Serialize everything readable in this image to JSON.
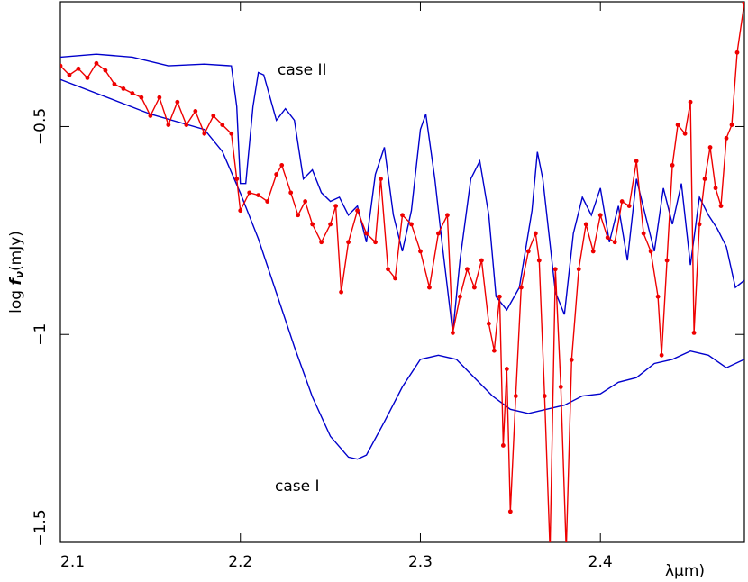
{
  "chart_data": {
    "type": "line",
    "x_label": "λμm)",
    "y_label": {
      "prefix": "log ",
      "symbol": "f",
      "sub": "ν",
      "unit": "(mJy)"
    },
    "xlim": [
      2.1,
      2.48
    ],
    "ylim": [
      -1.5,
      -0.2
    ],
    "xticks": [
      2.1,
      2.2,
      2.3,
      2.4
    ],
    "yticks": [
      {
        "value": -1.5,
        "label": "−1.5"
      },
      {
        "value": -1,
        "label": "−1"
      },
      {
        "value": -0.5,
        "label": "−0.5"
      }
    ],
    "series": [
      {
        "name": "case I",
        "color": "#0000cc",
        "markers": false,
        "x": [
          2.1,
          2.15,
          2.18,
          2.19,
          2.2,
          2.21,
          2.22,
          2.23,
          2.24,
          2.25,
          2.26,
          2.265,
          2.27,
          2.28,
          2.29,
          2.3,
          2.31,
          2.32,
          2.33,
          2.34,
          2.35,
          2.36,
          2.37,
          2.38,
          2.39,
          2.4,
          2.41,
          2.42,
          2.43,
          2.44,
          2.45,
          2.46,
          2.47,
          2.48
        ],
        "values": [
          -0.387,
          -0.47,
          -0.507,
          -0.56,
          -0.66,
          -0.77,
          -0.9,
          -1.03,
          -1.15,
          -1.245,
          -1.295,
          -1.3,
          -1.29,
          -1.21,
          -1.126,
          -1.06,
          -1.05,
          -1.06,
          -1.104,
          -1.148,
          -1.18,
          -1.19,
          -1.18,
          -1.17,
          -1.148,
          -1.143,
          -1.115,
          -1.104,
          -1.07,
          -1.06,
          -1.04,
          -1.05,
          -1.08,
          -1.06
        ]
      },
      {
        "name": "case II",
        "color": "#0000cc",
        "markers": false,
        "x": [
          2.1,
          2.12,
          2.14,
          2.16,
          2.18,
          2.195,
          2.198,
          2.2,
          2.203,
          2.207,
          2.21,
          2.213,
          2.22,
          2.225,
          2.23,
          2.235,
          2.24,
          2.245,
          2.25,
          2.255,
          2.26,
          2.265,
          2.27,
          2.275,
          2.28,
          2.285,
          2.29,
          2.295,
          2.3,
          2.303,
          2.308,
          2.312,
          2.318,
          2.322,
          2.328,
          2.333,
          2.338,
          2.342,
          2.348,
          2.355,
          2.362,
          2.365,
          2.368,
          2.375,
          2.38,
          2.385,
          2.39,
          2.395,
          2.4,
          2.405,
          2.41,
          2.415,
          2.42,
          2.425,
          2.43,
          2.435,
          2.44,
          2.445,
          2.45,
          2.455,
          2.46,
          2.465,
          2.47,
          2.475,
          2.48
        ],
        "values": [
          -0.333,
          -0.326,
          -0.333,
          -0.354,
          -0.35,
          -0.354,
          -0.452,
          -0.637,
          -0.637,
          -0.452,
          -0.37,
          -0.376,
          -0.485,
          -0.457,
          -0.485,
          -0.626,
          -0.604,
          -0.659,
          -0.68,
          -0.67,
          -0.713,
          -0.691,
          -0.778,
          -0.615,
          -0.55,
          -0.713,
          -0.8,
          -0.702,
          -0.507,
          -0.47,
          -0.626,
          -0.778,
          -0.996,
          -0.822,
          -0.626,
          -0.583,
          -0.713,
          -0.909,
          -0.941,
          -0.887,
          -0.702,
          -0.561,
          -0.626,
          -0.898,
          -0.952,
          -0.757,
          -0.67,
          -0.713,
          -0.648,
          -0.778,
          -0.691,
          -0.822,
          -0.626,
          -0.713,
          -0.8,
          -0.648,
          -0.735,
          -0.637,
          -0.833,
          -0.67,
          -0.713,
          -0.746,
          -0.789,
          -0.887,
          -0.87
        ]
      },
      {
        "color": "#ee0000",
        "markers": true,
        "x": [
          2.1,
          2.105,
          2.11,
          2.115,
          2.12,
          2.125,
          2.13,
          2.135,
          2.14,
          2.145,
          2.15,
          2.155,
          2.16,
          2.165,
          2.17,
          2.175,
          2.18,
          2.185,
          2.19,
          2.195,
          2.198,
          2.2,
          2.205,
          2.21,
          2.215,
          2.22,
          2.223,
          2.228,
          2.232,
          2.236,
          2.24,
          2.245,
          2.25,
          2.253,
          2.256,
          2.26,
          2.265,
          2.27,
          2.275,
          2.278,
          2.282,
          2.286,
          2.29,
          2.295,
          2.3,
          2.305,
          2.31,
          2.315,
          2.318,
          2.322,
          2.326,
          2.33,
          2.334,
          2.338,
          2.341,
          2.344,
          2.346,
          2.348,
          2.35,
          2.353,
          2.356,
          2.36,
          2.364,
          2.366,
          2.369,
          2.372,
          2.375,
          2.378,
          2.381,
          2.384,
          2.388,
          2.392,
          2.396,
          2.4,
          2.404,
          2.408,
          2.412,
          2.416,
          2.42,
          2.424,
          2.428,
          2.432,
          2.434,
          2.437,
          2.44,
          2.443,
          2.447,
          2.45,
          2.452,
          2.455,
          2.458,
          2.461,
          2.464,
          2.467,
          2.47,
          2.473,
          2.476,
          2.48
        ],
        "values": [
          -0.354,
          -0.376,
          -0.361,
          -0.383,
          -0.348,
          -0.365,
          -0.398,
          -0.409,
          -0.42,
          -0.43,
          -0.474,
          -0.43,
          -0.496,
          -0.441,
          -0.496,
          -0.463,
          -0.517,
          -0.474,
          -0.496,
          -0.517,
          -0.626,
          -0.702,
          -0.659,
          -0.665,
          -0.68,
          -0.615,
          -0.593,
          -0.659,
          -0.713,
          -0.68,
          -0.735,
          -0.778,
          -0.735,
          -0.691,
          -0.898,
          -0.778,
          -0.702,
          -0.757,
          -0.778,
          -0.626,
          -0.843,
          -0.865,
          -0.713,
          -0.735,
          -0.8,
          -0.887,
          -0.757,
          -0.713,
          -0.996,
          -0.909,
          -0.843,
          -0.887,
          -0.822,
          -0.974,
          -1.039,
          -0.909,
          -1.267,
          -1.083,
          -1.426,
          -1.148,
          -0.887,
          -0.8,
          -0.757,
          -0.822,
          -1.148,
          -1.52,
          -0.843,
          -1.126,
          -1.52,
          -1.061,
          -0.843,
          -0.735,
          -0.8,
          -0.713,
          -0.767,
          -0.778,
          -0.68,
          -0.691,
          -0.583,
          -0.757,
          -0.8,
          -0.909,
          -1.05,
          -0.822,
          -0.593,
          -0.496,
          -0.517,
          -0.441,
          -0.996,
          -0.735,
          -0.626,
          -0.55,
          -0.648,
          -0.691,
          -0.528,
          -0.496,
          -0.322,
          -0.202
        ]
      }
    ]
  }
}
